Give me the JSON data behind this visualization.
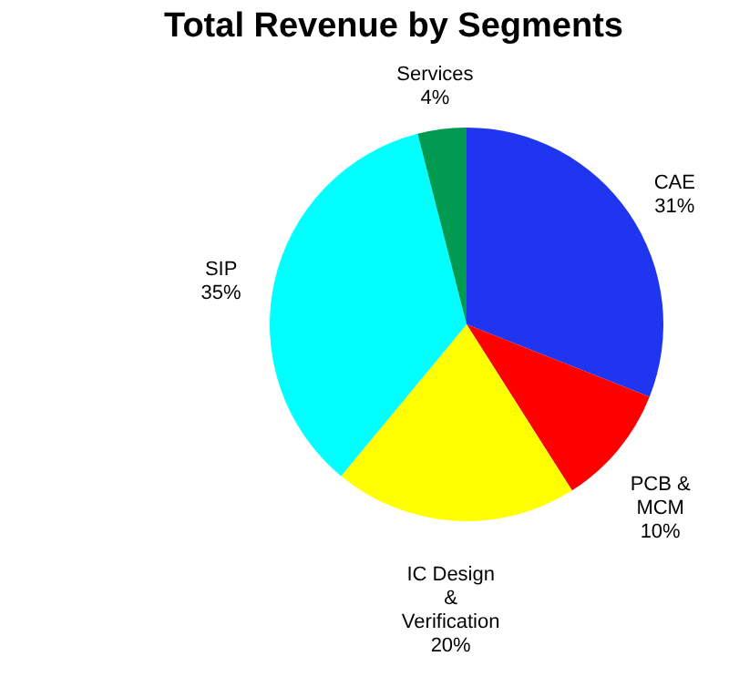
{
  "chart_data": {
    "type": "pie",
    "title": "Total Revenue by Segments",
    "categories": [
      "CAE",
      "PCB & MCM",
      "IC Design & Verification",
      "SIP",
      "Services"
    ],
    "values": [
      31,
      10,
      20,
      35,
      4
    ],
    "value_labels": [
      "31%",
      "10%",
      "20%",
      "35%",
      "4%"
    ],
    "colors": [
      "#1f35f0",
      "#ff0000",
      "#ffff00",
      "#00ffff",
      "#009a50"
    ],
    "legend": false
  }
}
